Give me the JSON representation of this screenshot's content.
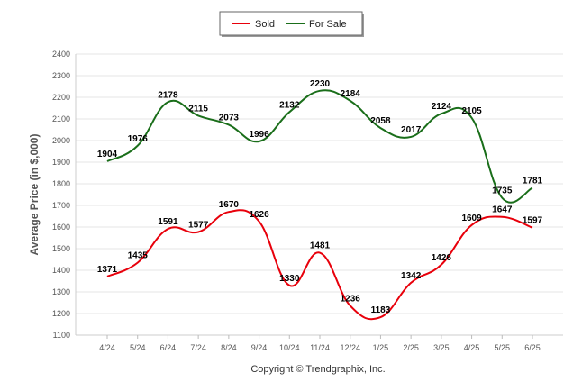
{
  "chart_data": {
    "type": "line",
    "categories": [
      "4/24",
      "5/24",
      "6/24",
      "7/24",
      "8/24",
      "9/24",
      "10/24",
      "11/24",
      "12/24",
      "1/25",
      "2/25",
      "3/25",
      "4/25",
      "5/25",
      "6/25"
    ],
    "series": [
      {
        "name": "Sold",
        "color": "#e8000b",
        "values": [
          1371,
          1435,
          1591,
          1577,
          1670,
          1626,
          1330,
          1481,
          1236,
          1183,
          1342,
          1426,
          1609,
          1647,
          1597
        ]
      },
      {
        "name": "For Sale",
        "color": "#1a6e1a",
        "values": [
          1904,
          1976,
          2178,
          2115,
          2073,
          1996,
          2132,
          2230,
          2184,
          2058,
          2017,
          2124,
          2105,
          1735,
          1781
        ]
      }
    ],
    "ylabel": "Average Price (in $,000)",
    "ylim": [
      1100,
      2400
    ],
    "yticks": [
      1100,
      1200,
      1300,
      1400,
      1500,
      1600,
      1700,
      1800,
      1900,
      2000,
      2100,
      2200,
      2300,
      2400
    ],
    "grid": true,
    "legend_position": "top-center"
  },
  "footer": {
    "copyright": "Copyright © Trendgraphix, Inc."
  }
}
